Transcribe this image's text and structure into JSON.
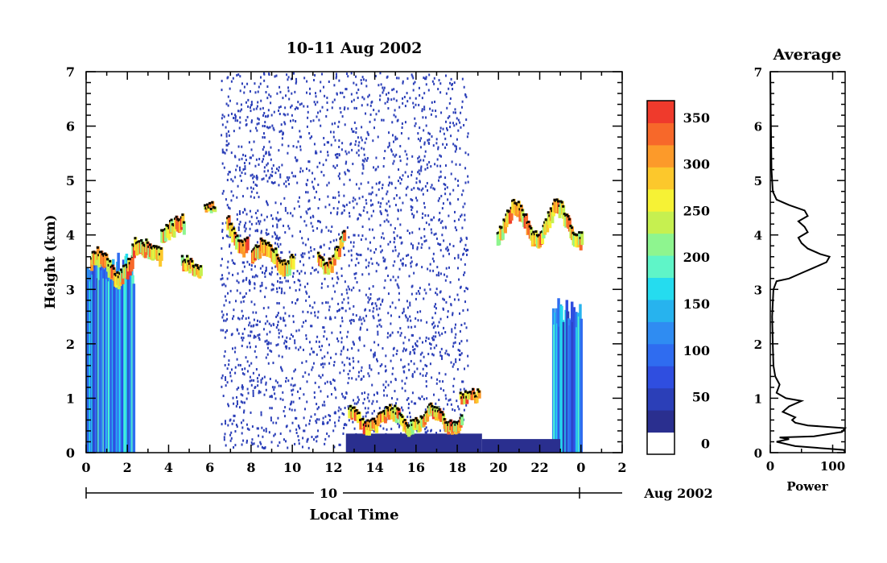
{
  "chart_data": [
    {
      "type": "heatmap",
      "title": "10-11 Aug 2002",
      "xlabel": "Local Time",
      "ylabel": "Height (km)",
      "xlim": [
        0,
        26
      ],
      "ylim": [
        0,
        7
      ],
      "x_tick_labels": [
        "0",
        "2",
        "4",
        "6",
        "8",
        "10",
        "12",
        "14",
        "16",
        "18",
        "20",
        "22",
        "0",
        "2"
      ],
      "y_tick_labels": [
        "0",
        "1",
        "2",
        "3",
        "4",
        "5",
        "6",
        "7"
      ],
      "date_axis": {
        "day_label": "10",
        "month_label": "Aug 2002"
      },
      "colorbar": {
        "tick_labels": [
          "0",
          "50",
          "100",
          "150",
          "200",
          "250",
          "300",
          "350"
        ],
        "colors": [
          "#ffffff",
          "#2a2f8f",
          "#2b3fb8",
          "#2f4ee0",
          "#2f6cf0",
          "#2f8cf2",
          "#27b3ee",
          "#25dcef",
          "#5ff5c8",
          "#8ef58f",
          "#c6f050",
          "#f6f235",
          "#fcc82c",
          "#fc9a2a",
          "#f7682a",
          "#ef3a2c"
        ],
        "range": [
          0,
          380
        ]
      },
      "features": {
        "cloud_top_layer_km": "3.2 - 4.6",
        "low_layer_km": "0.3 - 1.1",
        "noise_region_hours": [
          6.5,
          18.5
        ]
      }
    },
    {
      "type": "line",
      "title": "Average",
      "xlabel": "Power",
      "ylabel": "",
      "xlim": [
        0,
        120
      ],
      "ylim": [
        0,
        7
      ],
      "x_tick_labels": [
        "0",
        "100"
      ],
      "y_tick_labels": [
        "0",
        "1",
        "2",
        "3",
        "4",
        "5",
        "6",
        "7"
      ],
      "series": [
        {
          "points": [
            [
              120,
              0.0
            ],
            [
              118,
              0.05
            ],
            [
              40,
              0.12
            ],
            [
              10,
              0.2
            ],
            [
              30,
              0.25
            ],
            [
              15,
              0.28
            ],
            [
              70,
              0.3
            ],
            [
              115,
              0.38
            ],
            [
              122,
              0.45
            ],
            [
              60,
              0.5
            ],
            [
              40,
              0.55
            ],
            [
              35,
              0.6
            ],
            [
              40,
              0.65
            ],
            [
              20,
              0.75
            ],
            [
              30,
              0.85
            ],
            [
              50,
              0.95
            ],
            [
              25,
              1.0
            ],
            [
              10,
              1.1
            ],
            [
              15,
              1.25
            ],
            [
              8,
              1.4
            ],
            [
              5,
              1.6
            ],
            [
              4,
              2.0
            ],
            [
              3,
              2.5
            ],
            [
              5,
              3.0
            ],
            [
              10,
              3.15
            ],
            [
              30,
              3.2
            ],
            [
              50,
              3.3
            ],
            [
              70,
              3.4
            ],
            [
              90,
              3.5
            ],
            [
              95,
              3.6
            ],
            [
              80,
              3.65
            ],
            [
              60,
              3.75
            ],
            [
              50,
              3.85
            ],
            [
              45,
              3.95
            ],
            [
              60,
              4.05
            ],
            [
              55,
              4.15
            ],
            [
              45,
              4.25
            ],
            [
              60,
              4.35
            ],
            [
              55,
              4.45
            ],
            [
              30,
              4.55
            ],
            [
              10,
              4.65
            ],
            [
              4,
              4.8
            ],
            [
              2,
              5.2
            ],
            [
              1,
              6.0
            ],
            [
              0,
              7.0
            ]
          ]
        }
      ]
    }
  ]
}
